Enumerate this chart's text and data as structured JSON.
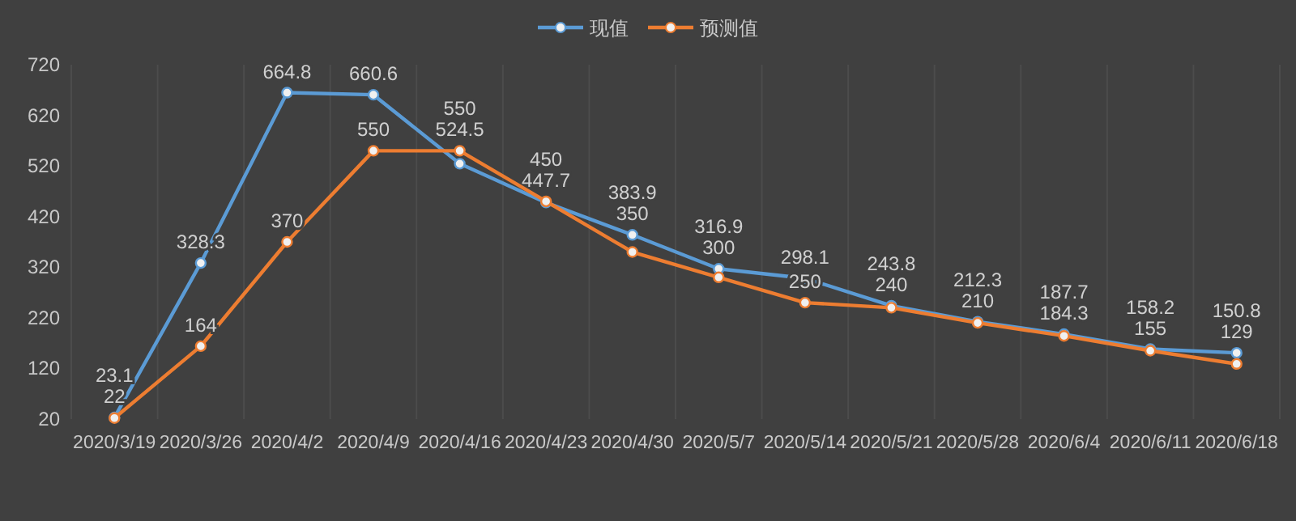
{
  "chart_data": {
    "type": "line",
    "categories": [
      "2020/3/19",
      "2020/3/26",
      "2020/4/2",
      "2020/4/9",
      "2020/4/16",
      "2020/4/23",
      "2020/4/30",
      "2020/5/7",
      "2020/5/14",
      "2020/5/21",
      "2020/5/28",
      "2020/6/4",
      "2020/6/11",
      "2020/6/18"
    ],
    "series": [
      {
        "name": "现值",
        "color": "#5b9bd5",
        "values": [
          23.1,
          328.3,
          664.8,
          660.6,
          524.5,
          447.7,
          383.9,
          316.9,
          298.1,
          243.8,
          212.3,
          187.7,
          158.2,
          150.8
        ]
      },
      {
        "name": "预测值",
        "color": "#ed7d31",
        "values": [
          22,
          164,
          370,
          550,
          550,
          450,
          350,
          300,
          250,
          240,
          210,
          184.3,
          155,
          129
        ]
      }
    ],
    "ylim": [
      20,
      720
    ],
    "yticks": [
      20,
      120,
      220,
      320,
      420,
      520,
      620,
      720
    ],
    "grid": "x",
    "legend": "top",
    "marker": "circle",
    "line_style": "solid",
    "data_labels": true
  }
}
